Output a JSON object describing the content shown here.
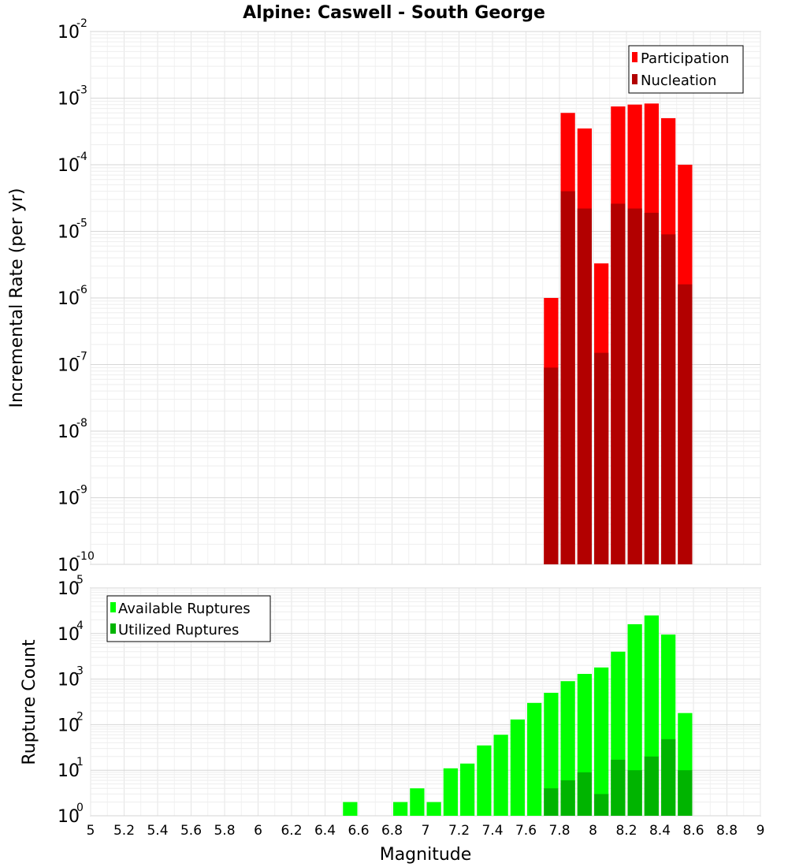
{
  "chart_data": [
    {
      "type": "bar",
      "title": "Alpine: Caswell - South George",
      "ylabel": "Incremental Rate (per yr)",
      "yscale": "log",
      "ylim_exp": [
        -10,
        -2
      ],
      "xlim": [
        5,
        9
      ],
      "bin_width": 0.1,
      "legend_position": "top-right",
      "series": [
        {
          "name": "Participation",
          "color": "#ff0000",
          "x": [
            7.75,
            7.85,
            7.95,
            8.05,
            8.15,
            8.25,
            8.35,
            8.45,
            8.55
          ],
          "values": [
            1e-06,
            0.0006,
            0.00035,
            3.3e-06,
            0.00075,
            0.0008,
            0.00083,
            0.0005,
            0.0001
          ]
        },
        {
          "name": "Nucleation",
          "color": "#b20000",
          "x": [
            7.75,
            7.85,
            7.95,
            8.05,
            8.15,
            8.25,
            8.35,
            8.45,
            8.55
          ],
          "values": [
            9e-08,
            4e-05,
            2.2e-05,
            1.5e-07,
            2.6e-05,
            2.2e-05,
            1.9e-05,
            9e-06,
            1.6e-06
          ]
        }
      ]
    },
    {
      "type": "bar",
      "ylabel": "Rupture Count",
      "xlabel": "Magnitude",
      "yscale": "log",
      "ylim_exp": [
        0,
        5
      ],
      "xlim": [
        5,
        9
      ],
      "bin_width": 0.1,
      "legend_position": "top-left",
      "x_ticks": [
        "5",
        "5.2",
        "5.4",
        "5.6",
        "5.8",
        "6",
        "6.2",
        "6.4",
        "6.6",
        "6.8",
        "7",
        "7.2",
        "7.4",
        "7.6",
        "7.8",
        "8",
        "8.2",
        "8.4",
        "8.6",
        "8.8",
        "9"
      ],
      "series": [
        {
          "name": "Available Ruptures",
          "color": "#00ff00",
          "x": [
            6.55,
            6.65,
            6.85,
            6.95,
            7.05,
            7.15,
            7.25,
            7.35,
            7.45,
            7.55,
            7.65,
            7.75,
            7.85,
            7.95,
            8.05,
            8.15,
            8.25,
            8.35,
            8.45,
            8.55
          ],
          "values": [
            2,
            1,
            2,
            4,
            2,
            11,
            14,
            35,
            60,
            130,
            300,
            500,
            900,
            1300,
            1800,
            4000,
            16000,
            25000,
            9500,
            180
          ]
        },
        {
          "name": "Utilized Ruptures",
          "color": "#00b400",
          "x": [
            7.75,
            7.85,
            7.95,
            8.05,
            8.15,
            8.25,
            8.35,
            8.45,
            8.55
          ],
          "values": [
            4,
            6,
            9,
            3,
            17,
            10,
            20,
            48,
            10
          ]
        }
      ]
    }
  ]
}
